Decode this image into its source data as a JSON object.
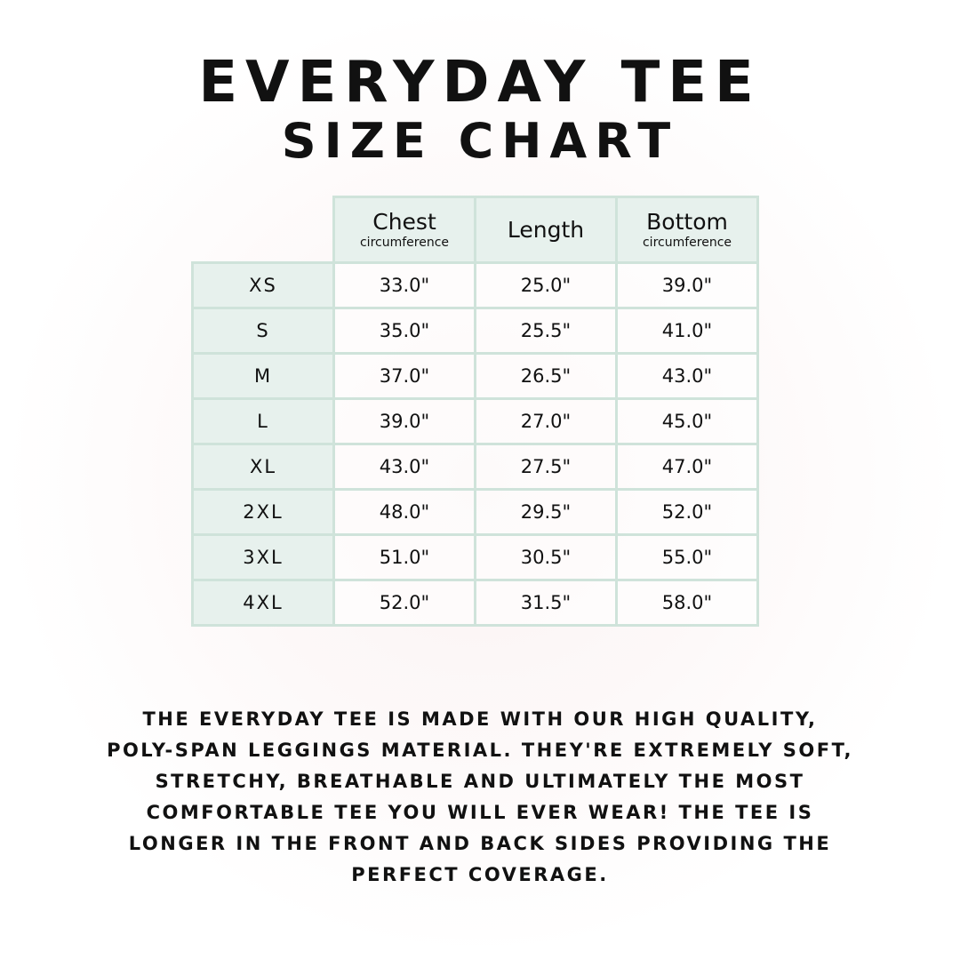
{
  "title": {
    "line1": "EVERYDAY TEE",
    "line2": "SIZE CHART"
  },
  "colors": {
    "border": "#cfe3da",
    "header_bg": "#e6f0ec",
    "text": "#111111"
  },
  "table": {
    "columns": [
      {
        "main": "Chest",
        "sub": "circumference"
      },
      {
        "main": "Length",
        "sub": ""
      },
      {
        "main": "Bottom",
        "sub": "circumference"
      }
    ],
    "rows": [
      {
        "size": "XS",
        "values": [
          "33.0\"",
          "25.0\"",
          "39.0\""
        ]
      },
      {
        "size": "S",
        "values": [
          "35.0\"",
          "25.5\"",
          "41.0\""
        ]
      },
      {
        "size": "M",
        "values": [
          "37.0\"",
          "26.5\"",
          "43.0\""
        ]
      },
      {
        "size": "L",
        "values": [
          "39.0\"",
          "27.0\"",
          "45.0\""
        ]
      },
      {
        "size": "XL",
        "values": [
          "43.0\"",
          "27.5\"",
          "47.0\""
        ]
      },
      {
        "size": "2XL",
        "values": [
          "48.0\"",
          "29.5\"",
          "52.0\""
        ]
      },
      {
        "size": "3XL",
        "values": [
          "51.0\"",
          "30.5\"",
          "55.0\""
        ]
      },
      {
        "size": "4XL",
        "values": [
          "52.0\"",
          "31.5\"",
          "58.0\""
        ]
      }
    ]
  },
  "description": {
    "lines": [
      "THE EVERYDAY TEE IS MADE WITH OUR HIGH QUALITY,",
      "POLY-SPAN LEGGINGS MATERIAL. THEY'RE EXTREMELY SOFT,",
      "STRETCHY, BREATHABLE AND ULTIMATELY THE MOST",
      "COMFORTABLE TEE YOU WILL EVER WEAR! THE TEE IS",
      "LONGER IN THE FRONT AND BACK SIDES PROVIDING THE",
      "PERFECT COVERAGE."
    ]
  }
}
